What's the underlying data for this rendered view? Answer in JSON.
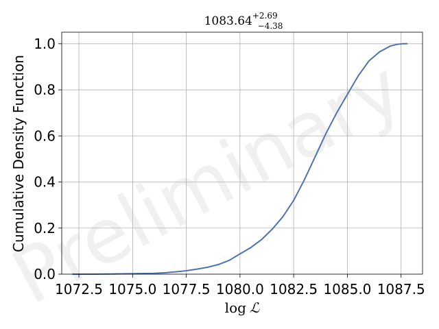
{
  "chart_data": {
    "type": "line",
    "title_value": "1083.64",
    "title_sup": "+2.69",
    "title_sub": "−4.38",
    "xlabel_prefix": "log",
    "xlabel_symbol": "ℒ",
    "ylabel": "Cumulative Density Function",
    "watermark": "Preliminary",
    "xlim": [
      1071.7,
      1088.5
    ],
    "ylim": [
      0,
      1.05
    ],
    "xticks": [
      1072.5,
      1075.0,
      1077.5,
      1080.0,
      1082.5,
      1085.0,
      1087.5
    ],
    "xtick_labels": [
      "1072.5",
      "1075.0",
      "1077.5",
      "1080.0",
      "1082.5",
      "1085.0",
      "1087.5"
    ],
    "yticks": [
      0.0,
      0.2,
      0.4,
      0.6,
      0.8,
      1.0
    ],
    "ytick_labels": [
      "0.0",
      "0.2",
      "0.4",
      "0.6",
      "0.8",
      "1.0"
    ],
    "grid": true,
    "line_color": "#4c72b0",
    "series": [
      {
        "x": [
          1072.2,
          1073.0,
          1074.0,
          1075.0,
          1076.0,
          1076.5,
          1077.0,
          1077.5,
          1078.0,
          1078.5,
          1079.0,
          1079.5,
          1080.0,
          1080.5,
          1081.0,
          1081.5,
          1082.0,
          1082.5,
          1083.0,
          1083.5,
          1084.0,
          1084.5,
          1085.0,
          1085.5,
          1086.0,
          1086.5,
          1087.0,
          1087.3,
          1087.6,
          1087.8
        ],
        "y": [
          0.0,
          0.0,
          0.001,
          0.002,
          0.004,
          0.006,
          0.01,
          0.015,
          0.022,
          0.03,
          0.042,
          0.06,
          0.088,
          0.115,
          0.15,
          0.195,
          0.25,
          0.32,
          0.41,
          0.51,
          0.61,
          0.7,
          0.78,
          0.86,
          0.925,
          0.965,
          0.99,
          0.997,
          1.0,
          1.0
        ]
      }
    ]
  }
}
